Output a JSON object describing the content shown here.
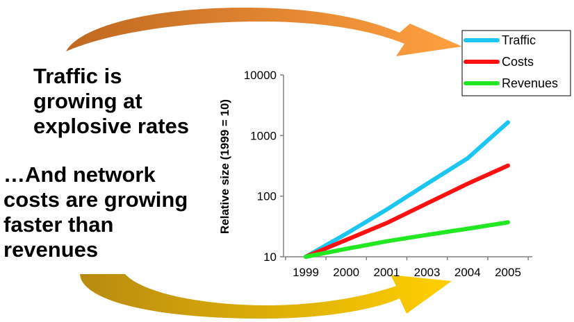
{
  "headlines": [
    {
      "lines": [
        "Traffic is",
        "growing at",
        "explosive rates"
      ]
    },
    {
      "lines": [
        "…And network",
        "costs are growing",
        "faster than",
        "revenues"
      ]
    }
  ],
  "colors": {
    "arrow_top_light": "#ffa040",
    "arrow_top_dark": "#c06820",
    "arrow_bottom_light": "#ffd000",
    "arrow_bottom_dark": "#b88a10",
    "axis": "#808080"
  },
  "chart_data": {
    "type": "line",
    "title": "",
    "xlabel": "",
    "ylabel": "Relative size (1999 = 10)",
    "yscale": "log",
    "ylim": [
      10,
      10000
    ],
    "yticks": [
      10,
      100,
      1000,
      10000
    ],
    "yticklabels": [
      "10",
      "100",
      "1000",
      "10000"
    ],
    "categories": [
      "1999",
      "2000",
      "2001",
      "2003",
      "2004",
      "2005"
    ],
    "grid": false,
    "legend_position": "top-right",
    "series": [
      {
        "name": "Traffic",
        "color": "#1cc6f2",
        "values": [
          10,
          24,
          60,
          160,
          420,
          1650
        ]
      },
      {
        "name": "Costs",
        "color": "#ff1010",
        "values": [
          10,
          19,
          36,
          76,
          160,
          320
        ]
      },
      {
        "name": "Revenues",
        "color": "#22e822",
        "values": [
          10,
          13.5,
          18,
          23,
          29,
          37
        ]
      }
    ]
  }
}
